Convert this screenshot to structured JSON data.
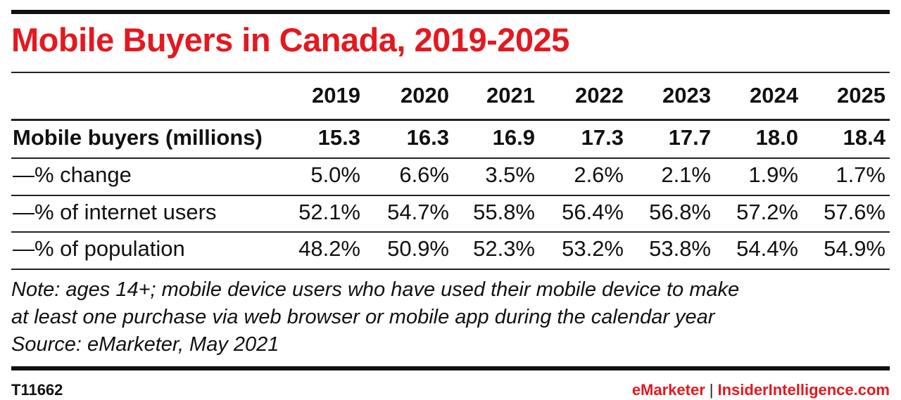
{
  "title": "Mobile Buyers in Canada, 2019-2025",
  "chart_data": {
    "type": "table",
    "columns": [
      "2019",
      "2020",
      "2021",
      "2022",
      "2023",
      "2024",
      "2025"
    ],
    "rows": [
      {
        "label": "Mobile buyers (millions)",
        "bold": true,
        "values": [
          "15.3",
          "16.3",
          "16.9",
          "17.3",
          "17.7",
          "18.0",
          "18.4"
        ]
      },
      {
        "label": "—% change",
        "bold": false,
        "values": [
          "5.0%",
          "6.6%",
          "3.5%",
          "2.6%",
          "2.1%",
          "1.9%",
          "1.7%"
        ]
      },
      {
        "label": "—% of internet users",
        "bold": false,
        "values": [
          "52.1%",
          "54.7%",
          "55.8%",
          "56.4%",
          "56.8%",
          "57.2%",
          "57.6%"
        ]
      },
      {
        "label": "—% of population",
        "bold": false,
        "values": [
          "48.2%",
          "50.9%",
          "52.3%",
          "53.2%",
          "53.8%",
          "54.4%",
          "54.9%"
        ]
      }
    ]
  },
  "note": {
    "line1": "Note: ages 14+; mobile device users who have used their mobile device to make",
    "line2": "at least one purchase via web browser or mobile app during the calendar year",
    "line3": "Source: eMarketer, May 2021"
  },
  "footer": {
    "id": "T11662",
    "brand_left": "eMarketer",
    "separator": "|",
    "brand_right": "InsiderIntelligence.com"
  }
}
